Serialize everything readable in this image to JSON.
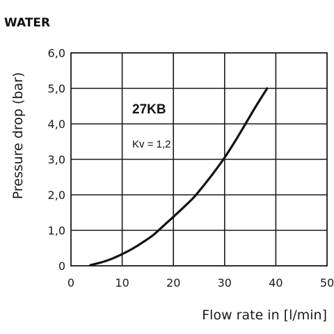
{
  "heading": "WATER",
  "chart_data": {
    "type": "line",
    "xlabel": "Flow rate in [l/min]",
    "ylabel": "Pressure drop (bar)",
    "xlim": [
      0,
      50
    ],
    "ylim": [
      0,
      6
    ],
    "grid": true,
    "x_ticks": [
      "0",
      "10",
      "20",
      "30",
      "40",
      "50"
    ],
    "y_ticks": [
      "0",
      "1,0",
      "2,0",
      "3,0",
      "4,0",
      "5,0",
      "6,0"
    ],
    "x_tick_values": [
      0,
      10,
      20,
      30,
      40,
      50
    ],
    "y_tick_values": [
      0,
      1,
      2,
      3,
      4,
      5,
      6
    ],
    "series": [
      {
        "name": "27KB",
        "x": [
          3.8,
          6,
          8,
          10,
          12,
          14,
          16,
          18,
          20,
          22,
          24,
          26,
          28,
          30,
          32,
          34,
          36,
          38.3
        ],
        "y": [
          0.02,
          0.1,
          0.2,
          0.33,
          0.48,
          0.66,
          0.86,
          1.12,
          1.38,
          1.65,
          1.93,
          2.28,
          2.65,
          3.05,
          3.5,
          3.98,
          4.47,
          5.0
        ]
      }
    ],
    "annotations": {
      "series_label": "27KB",
      "kv": "Kv = 1,2"
    },
    "colors": {
      "line": "#111111",
      "grid": "#1a1a1a",
      "background": "#ffffff"
    }
  }
}
